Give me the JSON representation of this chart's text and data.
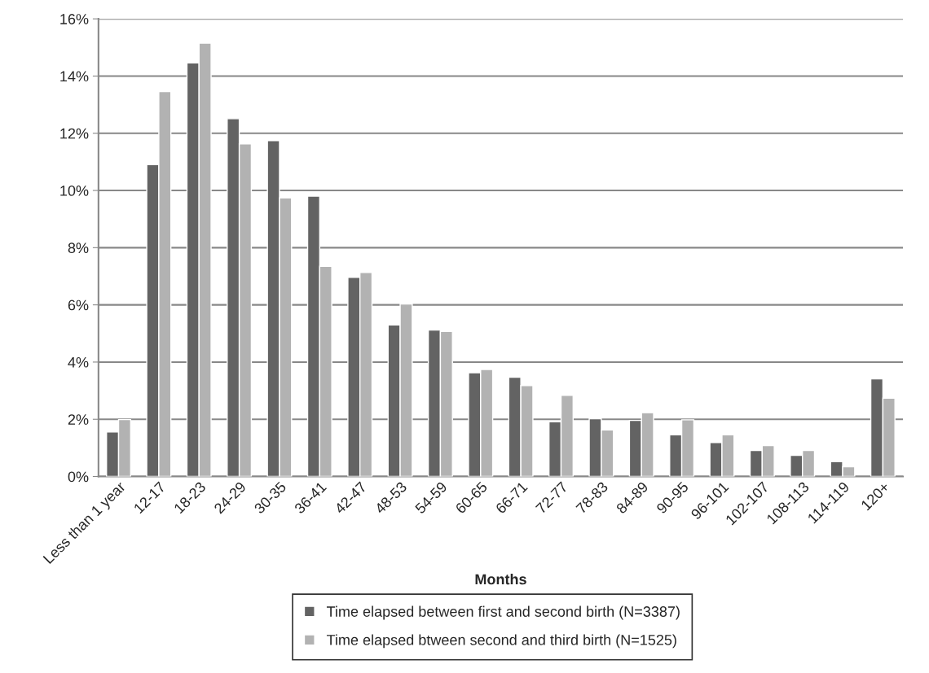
{
  "chart_data": {
    "type": "bar",
    "xlabel": "Months",
    "categories": [
      "Less than 1 year",
      "12-17",
      "18-23",
      "24-29",
      "30-35",
      "36-41",
      "42-47",
      "48-53",
      "54-59",
      "60-65",
      "66-71",
      "72-77",
      "78-83",
      "84-89",
      "90-95",
      "96-101",
      "102-107",
      "108-113",
      "114-119",
      "120+"
    ],
    "series": [
      {
        "name": "Time elapsed between first and second birth (N=3387)",
        "color": "#636363",
        "values": [
          1.56,
          10.9,
          14.46,
          12.51,
          11.74,
          9.8,
          6.96,
          5.3,
          5.12,
          3.63,
          3.47,
          1.91,
          2.02,
          1.96,
          1.46,
          1.19,
          0.91,
          0.74,
          0.52,
          3.41
        ]
      },
      {
        "name": "Time elapsed btween second and third birth (N=1525)",
        "color": "#b2b2b2",
        "values": [
          1.99,
          13.46,
          15.15,
          11.63,
          9.74,
          7.35,
          7.13,
          6.03,
          5.07,
          3.74,
          3.18,
          2.84,
          1.63,
          2.23,
          1.98,
          1.46,
          1.08,
          0.91,
          0.34,
          2.74
        ]
      }
    ],
    "ylim": [
      0,
      16
    ],
    "yticks": [
      {
        "value": 0,
        "label": "0%"
      },
      {
        "value": 2,
        "label": "2%"
      },
      {
        "value": 4,
        "label": "4%"
      },
      {
        "value": 6,
        "label": "6%"
      },
      {
        "value": 8,
        "label": "8%"
      },
      {
        "value": 10,
        "label": "10%"
      },
      {
        "value": 12,
        "label": "12%"
      },
      {
        "value": 14,
        "label": "14%"
      },
      {
        "value": 16,
        "label": "16%"
      }
    ],
    "grid": "y",
    "legend": "bottom"
  }
}
